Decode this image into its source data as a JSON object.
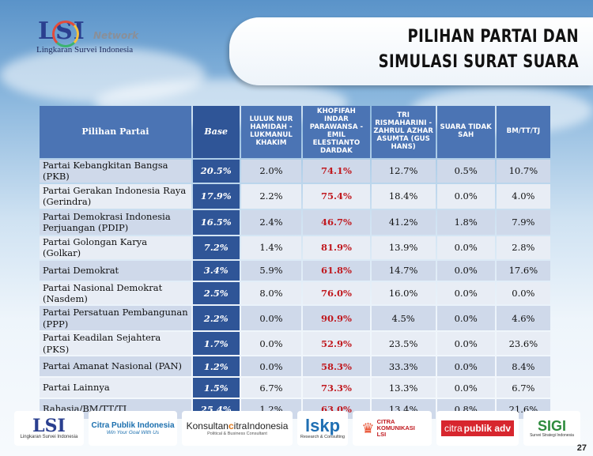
{
  "header": {
    "logo_brand": "LSI",
    "logo_network": "Network",
    "logo_subtitle": "Lingkaran Survei Indonesia",
    "title_line1": "PILIHAN PARTAI DAN",
    "title_line2": "SIMULASI SURAT SUARA"
  },
  "table": {
    "headers": [
      "Pilihan Partai",
      "Base",
      "LULUK NUR HAMIDAH - LUKMANUL KHAKIM",
      "KHOFIFAH INDAR PARAWANSA - EMIL ELESTIANTO DARDAK",
      "TRI RISMAHARINI - ZAHRUL AZHAR ASUMTA (GUS HANS)",
      "SUARA TIDAK SAH",
      "BM/TT/TJ"
    ],
    "rows": [
      {
        "party": "Partai Kebangkitan Bangsa (PKB)",
        "base": "20.5%",
        "c1": "2.0%",
        "c2": "74.1%",
        "c3": "12.7%",
        "c4": "0.5%",
        "c5": "10.7%"
      },
      {
        "party": "Partai Gerakan Indonesia Raya (Gerindra)",
        "base": "17.9%",
        "c1": "2.2%",
        "c2": "75.4%",
        "c3": "18.4%",
        "c4": "0.0%",
        "c5": "4.0%"
      },
      {
        "party": "Partai Demokrasi Indonesia Perjuangan (PDIP)",
        "base": "16.5%",
        "c1": "2.4%",
        "c2": "46.7%",
        "c3": "41.2%",
        "c4": "1.8%",
        "c5": "7.9%"
      },
      {
        "party": "Partai Golongan Karya (Golkar)",
        "base": "7.2%",
        "c1": "1.4%",
        "c2": "81.9%",
        "c3": "13.9%",
        "c4": "0.0%",
        "c5": "2.8%"
      },
      {
        "party": "Partai Demokrat",
        "base": "3.4%",
        "c1": "5.9%",
        "c2": "61.8%",
        "c3": "14.7%",
        "c4": "0.0%",
        "c5": "17.6%"
      },
      {
        "party": "Partai Nasional Demokrat (Nasdem)",
        "base": "2.5%",
        "c1": "8.0%",
        "c2": "76.0%",
        "c3": "16.0%",
        "c4": "0.0%",
        "c5": "0.0%"
      },
      {
        "party": "Partai Persatuan Pembangunan (PPP)",
        "base": "2.2%",
        "c1": "0.0%",
        "c2": "90.9%",
        "c3": "4.5%",
        "c4": "0.0%",
        "c5": "4.6%"
      },
      {
        "party": "Partai Keadilan Sejahtera (PKS)",
        "base": "1.7%",
        "c1": "0.0%",
        "c2": "52.9%",
        "c3": "23.5%",
        "c4": "0.0%",
        "c5": "23.6%"
      },
      {
        "party": "Partai Amanat Nasional (PAN)",
        "base": "1.2%",
        "c1": "0.0%",
        "c2": "58.3%",
        "c3": "33.3%",
        "c4": "0.0%",
        "c5": "8.4%"
      },
      {
        "party": "Partai Lainnya",
        "base": "1.5%",
        "c1": "6.7%",
        "c2": "73.3%",
        "c3": "13.3%",
        "c4": "0.0%",
        "c5": "6.7%"
      },
      {
        "party": "Rahasia/BM/TT/TJ",
        "base": "25.4%",
        "c1": "1.2%",
        "c2": "63.0%",
        "c3": "13.4%",
        "c4": "0.8%",
        "c5": "21.6%"
      }
    ]
  },
  "footer": {
    "logos": [
      {
        "text": "LSI",
        "sub": "Lingkaran Survei Indonesia"
      },
      {
        "text": "Citra Publik Indonesia",
        "sub": "Win Your Goal With Us"
      },
      {
        "text": "Konsultan",
        "text2": "itraIndonesia",
        "sub": "Political & Business Consultant"
      },
      {
        "text": "lskp",
        "sub": "Research & Consulting"
      },
      {
        "text": "CITRA KOMUNIKASI LSI"
      },
      {
        "text": "citra",
        "text2": "publik adv"
      },
      {
        "text": "SIGI",
        "sub": "Survei Strategi Indonesia"
      }
    ],
    "page_number": "27"
  },
  "colors": {
    "header_blue": "#4b74b4",
    "base_blue": "#2f5597",
    "highlight_red": "#c0191f",
    "row_odd": "#cfd9ea",
    "row_even": "#e8edf5"
  }
}
